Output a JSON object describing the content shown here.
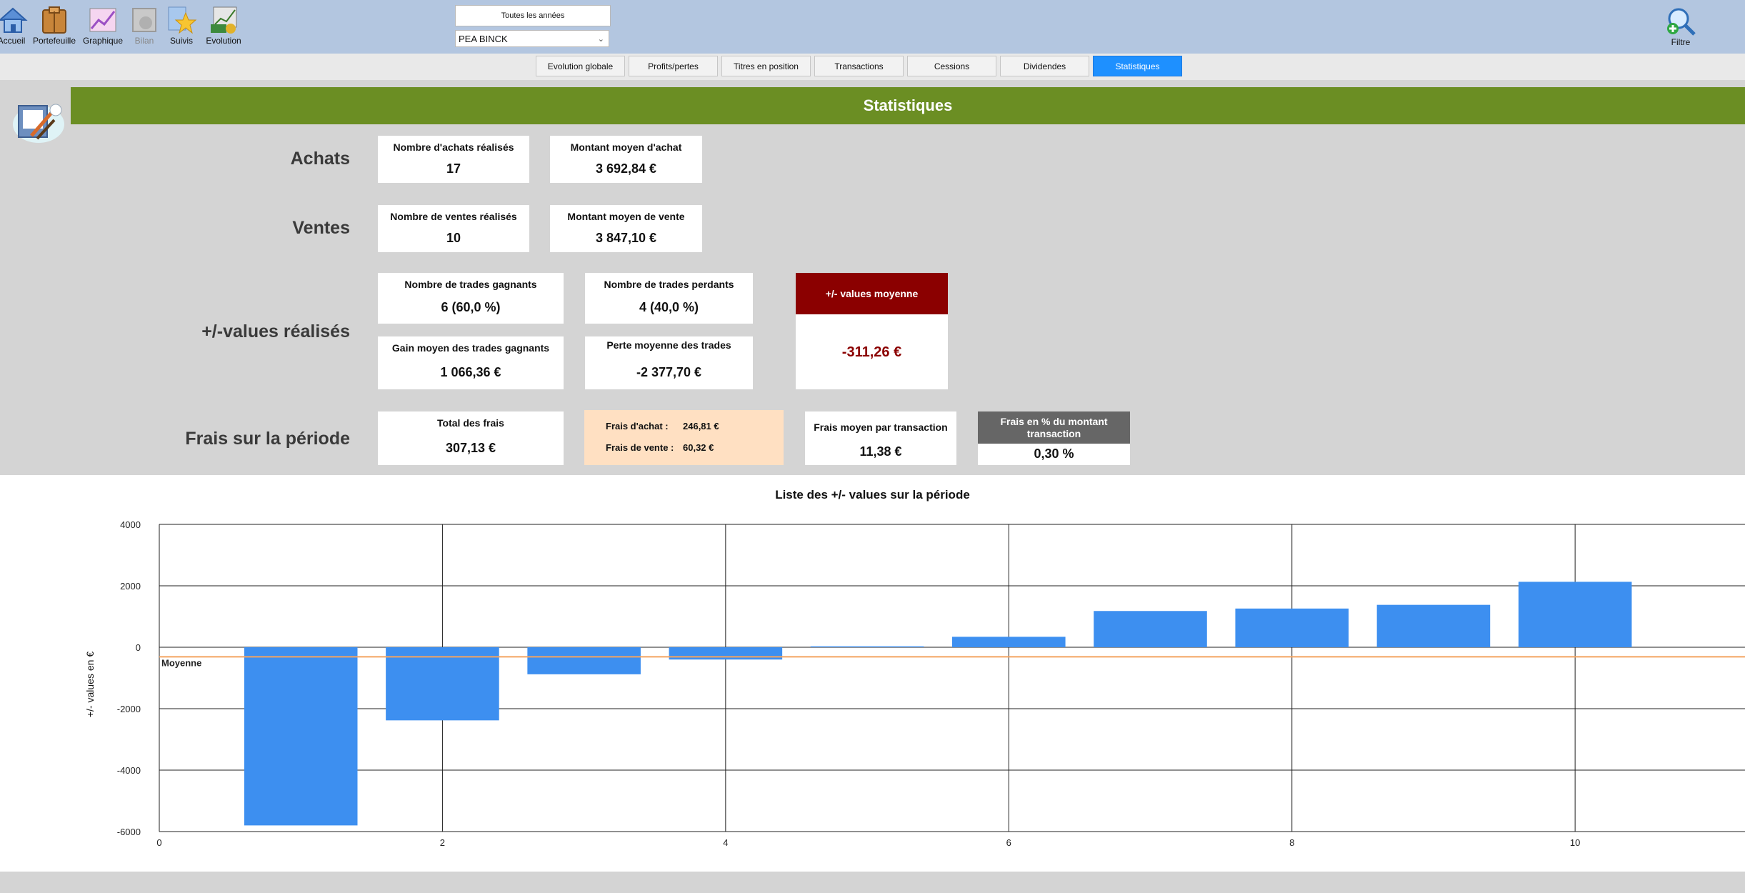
{
  "toolbar": {
    "items": [
      {
        "label": "Accueil",
        "icon": "home-icon"
      },
      {
        "label": "Portefeuille",
        "icon": "portfolio-icon"
      },
      {
        "label": "Graphique",
        "icon": "chart-icon"
      },
      {
        "label": "Bilan",
        "icon": "balance-icon",
        "disabled": true
      },
      {
        "label": "Suivis",
        "icon": "star-icon"
      },
      {
        "label": "Evolution",
        "icon": "evolution-icon"
      }
    ],
    "year_filter": "Toutes les années",
    "account": "PEA BINCK",
    "filter_label": "Filtre"
  },
  "tabs": [
    {
      "label": "Evolution globale"
    },
    {
      "label": "Profits/pertes"
    },
    {
      "label": "Titres en position"
    },
    {
      "label": "Transactions"
    },
    {
      "label": "Cessions"
    },
    {
      "label": "Dividendes"
    },
    {
      "label": "Statistiques",
      "active": true
    }
  ],
  "banner_title": "Statistiques",
  "achats": {
    "label": "Achats",
    "count_title": "Nombre d'achats réalisés",
    "count_value": "17",
    "avg_title": "Montant moyen d'achat",
    "avg_value": "3 692,84 €"
  },
  "ventes": {
    "label": "Ventes",
    "count_title": "Nombre de ventes réalisés",
    "count_value": "10",
    "avg_title": "Montant moyen de vente",
    "avg_value": "3 847,10 €"
  },
  "values": {
    "label": "+/-values réalisés",
    "win_title": "Nombre de trades gagnants",
    "win_value": "6 (60,0 %)",
    "loss_title": "Nombre de trades perdants",
    "loss_value": "4 (40,0 %)",
    "win_avg_title": "Gain moyen des trades gagnants",
    "win_avg_value": "1 066,36 €",
    "loss_avg_title": "Perte moyenne des trades",
    "loss_avg_value": "-2 377,70 €",
    "mean_title": "+/- values moyenne",
    "mean_value": "-311,26 €"
  },
  "frais": {
    "label": "Frais sur la période",
    "total_title": "Total des frais",
    "total_value": "307,13 €",
    "achat_label": "Frais d'achat :",
    "achat_value": "246,81 €",
    "vente_label": "Frais de vente :",
    "vente_value": "60,32 €",
    "avg_title": "Frais moyen par transaction",
    "avg_value": "11,38 €",
    "pct_title": "Frais en % du montant transaction",
    "pct_value": "0,30 %"
  },
  "colors": {
    "banner": "#6b8e23",
    "bar": "#3d8ff0",
    "mean_line": "#f4a460",
    "mean_card": "#8b0000",
    "active_tab": "#1e90ff"
  },
  "chart_data": {
    "type": "bar",
    "title": "Liste des +/- values sur la période",
    "ylabel": "+/- values en €",
    "x": [
      1,
      2,
      3,
      4,
      5,
      6,
      7,
      8,
      9,
      10
    ],
    "values": [
      -5800,
      -2380,
      -880,
      -400,
      30,
      340,
      1180,
      1260,
      1380,
      2130
    ],
    "xticks": [
      0,
      2,
      4,
      6,
      8,
      10
    ],
    "yticks": [
      4000,
      2000,
      0,
      -2000,
      -4000,
      -6000
    ],
    "xlim": [
      0,
      11.2
    ],
    "ylim": [
      -6000,
      4000
    ],
    "mean": -311.26,
    "mean_label": "Moyenne",
    "grid": true
  }
}
